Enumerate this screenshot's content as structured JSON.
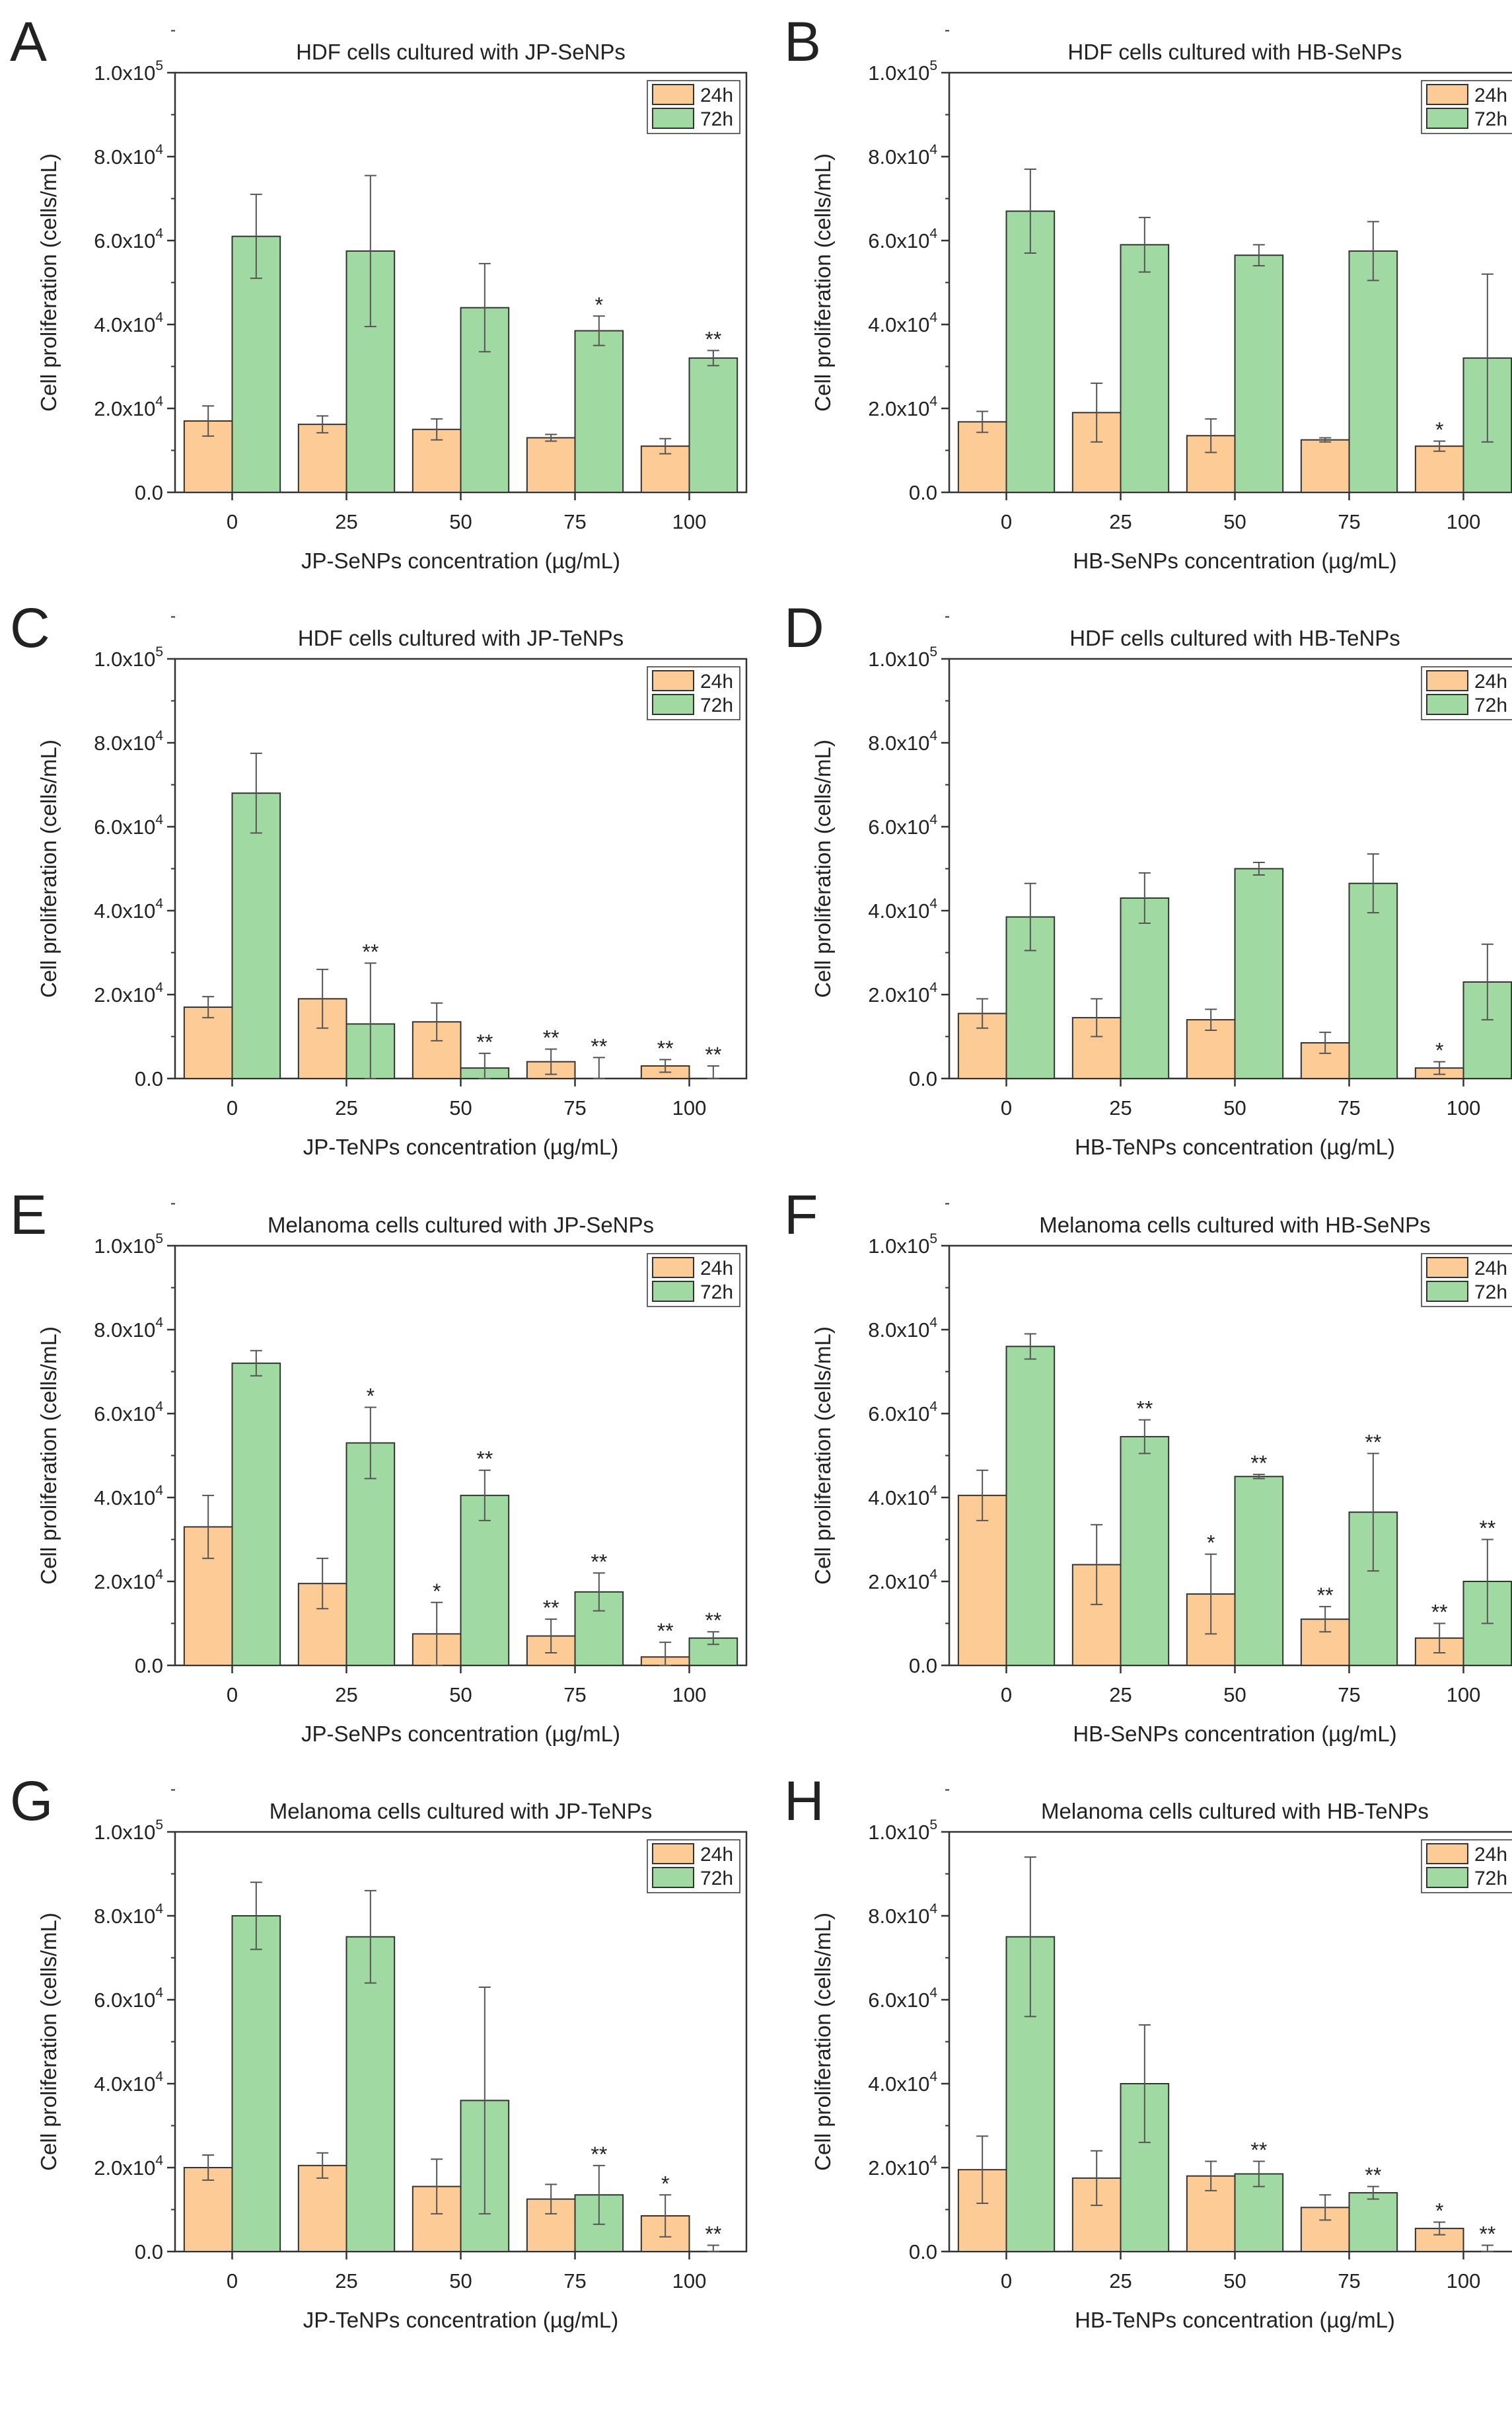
{
  "legend_labels": [
    "24h",
    "72h"
  ],
  "colors": {
    "h24": "#FCCB96",
    "h72": "#A1D9A2",
    "edge": "#333333",
    "error": "#555555"
  },
  "y_tick_labels": [
    {
      "mant": "0.0",
      "exp": ""
    },
    {
      "mant": "2.0x10",
      "exp": "4"
    },
    {
      "mant": "4.0x10",
      "exp": "4"
    },
    {
      "mant": "6.0x10",
      "exp": "4"
    },
    {
      "mant": "8.0x10",
      "exp": "4"
    },
    {
      "mant": "1.0x10",
      "exp": "5"
    }
  ],
  "chart_data": [
    {
      "letter": "A",
      "type": "bar",
      "title": "HDF cells cultured with JP-SeNPs",
      "xlabel": "JP-SeNPs concentration (µg/mL)",
      "ylabel": "Cell proliferation (cells/mL)",
      "ylim": [
        0,
        100000
      ],
      "categories": [
        "0",
        "25",
        "50",
        "75",
        "100"
      ],
      "series": [
        {
          "name": "24h",
          "values": [
            17000,
            16200,
            15000,
            13000,
            11000
          ],
          "errors": [
            3600,
            2000,
            2500,
            800,
            1800
          ],
          "sig": [
            "",
            "",
            "",
            "",
            ""
          ]
        },
        {
          "name": "72h",
          "values": [
            61000,
            57500,
            44000,
            38500,
            32000
          ],
          "errors": [
            10000,
            18000,
            10500,
            3500,
            1800
          ],
          "sig": [
            "",
            "",
            "",
            "*",
            "**"
          ]
        }
      ]
    },
    {
      "letter": "B",
      "type": "bar",
      "title": "HDF cells cultured with HB-SeNPs",
      "xlabel": "HB-SeNPs concentration (µg/mL)",
      "ylabel": "Cell proliferation (cells/mL)",
      "ylim": [
        0,
        100000
      ],
      "categories": [
        "0",
        "25",
        "50",
        "75",
        "100"
      ],
      "series": [
        {
          "name": "24h",
          "values": [
            16800,
            19000,
            13500,
            12500,
            11000
          ],
          "errors": [
            2500,
            7000,
            4000,
            500,
            1200
          ],
          "sig": [
            "",
            "",
            "",
            "",
            "*"
          ]
        },
        {
          "name": "72h",
          "values": [
            67000,
            59000,
            56500,
            57500,
            32000
          ],
          "errors": [
            10000,
            6500,
            2500,
            7000,
            20000
          ],
          "sig": [
            "",
            "",
            "",
            "",
            ""
          ]
        }
      ]
    },
    {
      "letter": "C",
      "type": "bar",
      "title": "HDF cells cultured with JP-TeNPs",
      "xlabel": "JP-TeNPs concentration (µg/mL)",
      "ylabel": "Cell proliferation (cells/mL)",
      "ylim": [
        0,
        100000
      ],
      "categories": [
        "0",
        "25",
        "50",
        "75",
        "100"
      ],
      "series": [
        {
          "name": "24h",
          "values": [
            17000,
            19000,
            13500,
            4000,
            3000
          ],
          "errors": [
            2500,
            7000,
            4500,
            3000,
            1500
          ],
          "sig": [
            "",
            "",
            "",
            "**",
            "**"
          ]
        },
        {
          "name": "72h",
          "values": [
            68000,
            13000,
            2500,
            0,
            0
          ],
          "errors": [
            9500,
            14500,
            3500,
            5000,
            3000
          ],
          "sig": [
            "",
            "**",
            "**",
            "**",
            "**"
          ]
        }
      ]
    },
    {
      "letter": "D",
      "type": "bar",
      "title": "HDF cells cultured with HB-TeNPs",
      "xlabel": "HB-TeNPs concentration (µg/mL)",
      "ylabel": "Cell proliferation (cells/mL)",
      "ylim": [
        0,
        100000
      ],
      "categories": [
        "0",
        "25",
        "50",
        "75",
        "100"
      ],
      "series": [
        {
          "name": "24h",
          "values": [
            15500,
            14500,
            14000,
            8500,
            2500
          ],
          "errors": [
            3500,
            4500,
            2500,
            2500,
            1500
          ],
          "sig": [
            "",
            "",
            "",
            "",
            "*"
          ]
        },
        {
          "name": "72h",
          "values": [
            38500,
            43000,
            50000,
            46500,
            23000
          ],
          "errors": [
            8000,
            6000,
            1500,
            7000,
            9000
          ],
          "sig": [
            "",
            "",
            "",
            "",
            ""
          ]
        }
      ]
    },
    {
      "letter": "E",
      "type": "bar",
      "title": "Melanoma cells cultured with JP-SeNPs",
      "xlabel": "JP-SeNPs concentration (µg/mL)",
      "ylabel": "Cell proliferation (cells/mL)",
      "ylim": [
        0,
        100000
      ],
      "categories": [
        "0",
        "25",
        "50",
        "75",
        "100"
      ],
      "series": [
        {
          "name": "24h",
          "values": [
            33000,
            19500,
            7500,
            7000,
            2000
          ],
          "errors": [
            7500,
            6000,
            7500,
            4000,
            3500
          ],
          "sig": [
            "",
            "",
            "*",
            "**",
            "**"
          ]
        },
        {
          "name": "72h",
          "values": [
            72000,
            53000,
            40500,
            17500,
            6500
          ],
          "errors": [
            3000,
            8500,
            6000,
            4500,
            1500
          ],
          "sig": [
            "",
            "*",
            "**",
            "**",
            "**"
          ]
        }
      ]
    },
    {
      "letter": "F",
      "type": "bar",
      "title": "Melanoma cells cultured with HB-SeNPs",
      "xlabel": "HB-SeNPs concentration (µg/mL)",
      "ylabel": "Cell proliferation (cells/mL)",
      "ylim": [
        0,
        100000
      ],
      "categories": [
        "0",
        "25",
        "50",
        "75",
        "100"
      ],
      "series": [
        {
          "name": "24h",
          "values": [
            40500,
            24000,
            17000,
            11000,
            6500
          ],
          "errors": [
            6000,
            9500,
            9500,
            3000,
            3500
          ],
          "sig": [
            "",
            "",
            "*",
            "**",
            "**"
          ]
        },
        {
          "name": "72h",
          "values": [
            76000,
            54500,
            45000,
            36500,
            20000
          ],
          "errors": [
            3000,
            4000,
            500,
            14000,
            10000
          ],
          "sig": [
            "",
            "**",
            "**",
            "**",
            "**"
          ]
        }
      ]
    },
    {
      "letter": "G",
      "type": "bar",
      "title": "Melanoma cells cultured with JP-TeNPs",
      "xlabel": "JP-TeNPs concentration (µg/mL)",
      "ylabel": "Cell proliferation (cells/mL)",
      "ylim": [
        0,
        100000
      ],
      "categories": [
        "0",
        "25",
        "50",
        "75",
        "100"
      ],
      "series": [
        {
          "name": "24h",
          "values": [
            20000,
            20500,
            15500,
            12500,
            8500
          ],
          "errors": [
            3000,
            3000,
            6500,
            3500,
            5000
          ],
          "sig": [
            "",
            "",
            "",
            "",
            "*"
          ]
        },
        {
          "name": "72h",
          "values": [
            80000,
            75000,
            36000,
            13500,
            0
          ],
          "errors": [
            8000,
            11000,
            27000,
            7000,
            1500
          ],
          "sig": [
            "",
            "",
            "",
            "**",
            "**"
          ]
        }
      ]
    },
    {
      "letter": "H",
      "type": "bar",
      "title": "Melanoma cells cultured with HB-TeNPs",
      "xlabel": "HB-TeNPs concentration (µg/mL)",
      "ylabel": "Cell proliferation (cells/mL)",
      "ylim": [
        0,
        100000
      ],
      "categories": [
        "0",
        "25",
        "50",
        "75",
        "100"
      ],
      "series": [
        {
          "name": "24h",
          "values": [
            19500,
            17500,
            18000,
            10500,
            5500
          ],
          "errors": [
            8000,
            6500,
            3500,
            3000,
            1500
          ],
          "sig": [
            "",
            "",
            "",
            "",
            "*"
          ]
        },
        {
          "name": "72h",
          "values": [
            75000,
            40000,
            18500,
            14000,
            0
          ],
          "errors": [
            19000,
            14000,
            3000,
            1500,
            1500
          ],
          "sig": [
            "",
            "",
            "**",
            "**",
            "**"
          ]
        }
      ]
    }
  ]
}
